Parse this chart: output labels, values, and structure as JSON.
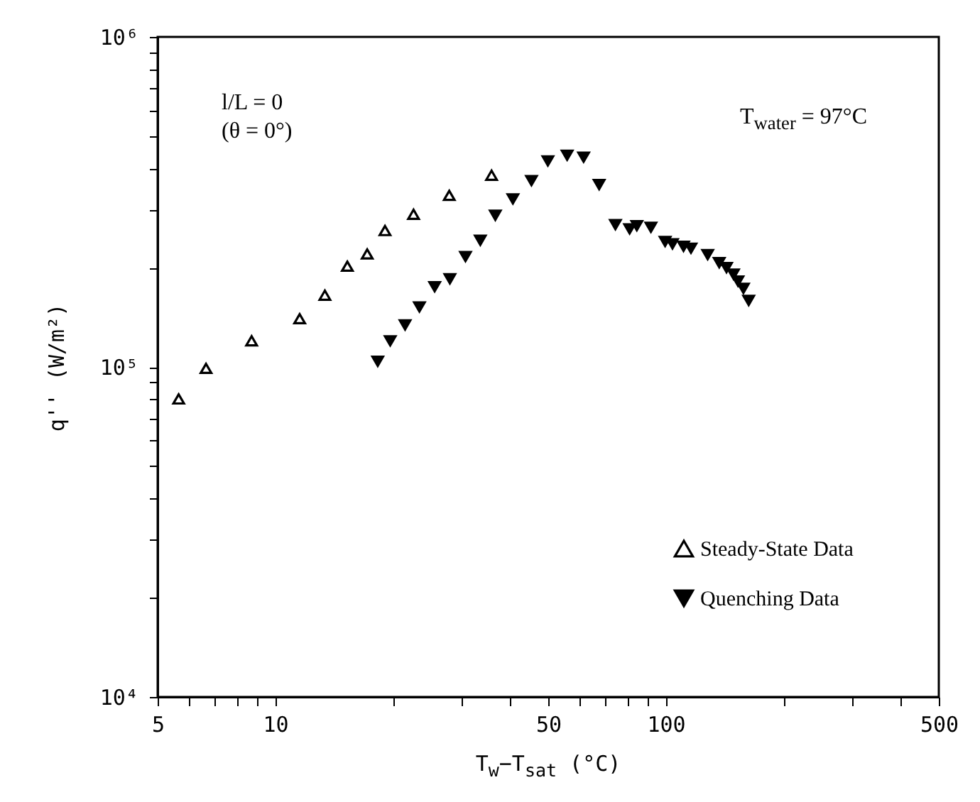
{
  "chart_data": {
    "type": "scatter",
    "xlabel": "T$_{w}$−T$_{sat}$ (°C)",
    "ylabel": "q'' (W/m²)",
    "annotations": [
      "l/L = 0",
      "(θ = 0°)",
      "T$_{water}$ = 97°C"
    ],
    "log": "xy",
    "grid": false,
    "legend": "bottom right",
    "marker": "triangle",
    "xlim": [
      5,
      500
    ],
    "ylim": [
      10000,
      1000000
    ],
    "xticks": [
      5,
      {
        "value": 6,
        "label": null
      },
      {
        "value": 7,
        "label": null
      },
      {
        "value": 8,
        "label": null
      },
      {
        "value": 9,
        "label": null
      },
      10,
      {
        "value": 20,
        "label": null
      },
      {
        "value": 30,
        "label": null
      },
      {
        "value": 40,
        "label": null
      },
      50,
      {
        "value": 60,
        "label": null
      },
      {
        "value": 70,
        "label": null
      },
      {
        "value": 80,
        "label": null
      },
      {
        "value": 90,
        "label": null
      },
      100,
      {
        "value": 200,
        "label": null
      },
      {
        "value": 300,
        "label": null
      },
      {
        "value": 400,
        "label": null
      },
      500
    ],
    "yticks": [
      {
        "value": 10000,
        "label": "10⁴"
      },
      {
        "value": 20000,
        "label": null
      },
      {
        "value": 30000,
        "label": null
      },
      {
        "value": 40000,
        "label": null
      },
      {
        "value": 50000,
        "label": null
      },
      {
        "value": 60000,
        "label": null
      },
      {
        "value": 70000,
        "label": null
      },
      {
        "value": 80000,
        "label": null
      },
      {
        "value": 90000,
        "label": null
      },
      {
        "value": 100000,
        "label": "10⁵"
      },
      {
        "value": 200000,
        "label": null
      },
      {
        "value": 300000,
        "label": null
      },
      {
        "value": 400000,
        "label": null
      },
      {
        "value": 500000,
        "label": null
      },
      {
        "value": 600000,
        "label": null
      },
      {
        "value": 700000,
        "label": null
      },
      {
        "value": 800000,
        "label": null
      },
      {
        "value": 900000,
        "label": null
      },
      {
        "value": 1000000,
        "label": "10⁶"
      }
    ],
    "series": [
      {
        "name": "Steady-State Data",
        "color": "#000000",
        "x": [
          5.66,
          6.65,
          8.7,
          11.55,
          13.4,
          15.3,
          17.2,
          19.1,
          22.6,
          27.9,
          35.8
        ],
        "values": [
          80000,
          99000,
          120000,
          140000,
          165000,
          202000,
          220000,
          259000,
          290000,
          331000,
          381000
        ]
      },
      {
        "name": "Quenching Data",
        "color": "#000000",
        "x": [
          18.3,
          19.7,
          21.5,
          23.4,
          25.6,
          28.0,
          30.7,
          33.5,
          36.6,
          40.6,
          45.3,
          49.9,
          55.9,
          61.6,
          67.5,
          74.3,
          80.8,
          84.3,
          91.6,
          99.6,
          104,
          111,
          116,
          128,
          137,
          143,
          149,
          153,
          158,
          163
        ],
        "values": [
          104000,
          120000,
          134000,
          152000,
          175000,
          185000,
          216000,
          242000,
          288000,
          323000,
          367000,
          421000,
          438000,
          432000,
          357000,
          270000,
          262000,
          268000,
          265000,
          240000,
          236000,
          232000,
          229000,
          219000,
          207000,
          200000,
          191000,
          182000,
          173000,
          159000
        ]
      }
    ]
  }
}
